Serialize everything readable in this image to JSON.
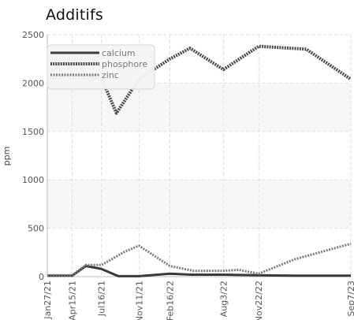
{
  "chart_data": {
    "type": "line",
    "title": "Additifs",
    "xlabel": "",
    "ylabel": "ppm",
    "ylim": [
      0,
      2500
    ],
    "yticks": [
      0,
      500,
      1000,
      1500,
      2000,
      2500
    ],
    "xlim": [
      "2021-01-27",
      "2023-09-07"
    ],
    "x_ticks": [
      {
        "date": "2021-01-27",
        "label": "Jan27/21"
      },
      {
        "date": "2021-04-15",
        "label": "Apr15/21"
      },
      {
        "date": "2021-07-16",
        "label": "Jul16/21"
      },
      {
        "date": "2021-11-11",
        "label": "Nov11/21"
      },
      {
        "date": "2022-02-16",
        "label": "Feb16/22"
      },
      {
        "date": "2022-08-03",
        "label": "Aug3/22"
      },
      {
        "date": "2022-11-22",
        "label": "Nov22/22"
      },
      {
        "date": "2023-09-07",
        "label": "Sep7/23"
      }
    ],
    "grid": true,
    "legend_position": "top-left",
    "series": [
      {
        "name": "calcium",
        "color": "#3a3a3a",
        "points": [
          [
            "2021-01-27",
            10
          ],
          [
            "2021-04-15",
            10
          ],
          [
            "2021-05-28",
            110
          ],
          [
            "2021-07-16",
            80
          ],
          [
            "2021-09-07",
            5
          ],
          [
            "2021-11-11",
            5
          ],
          [
            "2022-02-16",
            30
          ],
          [
            "2022-04-25",
            20
          ],
          [
            "2022-08-03",
            20
          ],
          [
            "2022-11-22",
            15
          ],
          [
            "2023-03-15",
            10
          ],
          [
            "2023-09-07",
            10
          ]
        ]
      },
      {
        "name": "phosphore",
        "color": "#4a4a4a",
        "points": [
          [
            "2021-01-27",
            2050
          ],
          [
            "2021-04-15",
            2060
          ],
          [
            "2021-07-16",
            2050
          ],
          [
            "2021-09-01",
            1690
          ],
          [
            "2021-11-11",
            2040
          ],
          [
            "2022-02-16",
            2250
          ],
          [
            "2022-04-20",
            2360
          ],
          [
            "2022-08-03",
            2140
          ],
          [
            "2022-11-22",
            2380
          ],
          [
            "2023-04-20",
            2350
          ],
          [
            "2023-09-07",
            2040
          ]
        ]
      },
      {
        "name": "zinc",
        "color": "#7a7a7a",
        "points": [
          [
            "2021-01-27",
            15
          ],
          [
            "2021-04-15",
            15
          ],
          [
            "2021-05-28",
            120
          ],
          [
            "2021-07-16",
            120
          ],
          [
            "2021-09-28",
            260
          ],
          [
            "2021-11-11",
            320
          ],
          [
            "2022-02-16",
            110
          ],
          [
            "2022-05-01",
            60
          ],
          [
            "2022-08-03",
            60
          ],
          [
            "2022-09-20",
            70
          ],
          [
            "2022-11-22",
            30
          ],
          [
            "2023-03-15",
            180
          ],
          [
            "2023-09-07",
            340
          ]
        ]
      }
    ]
  }
}
